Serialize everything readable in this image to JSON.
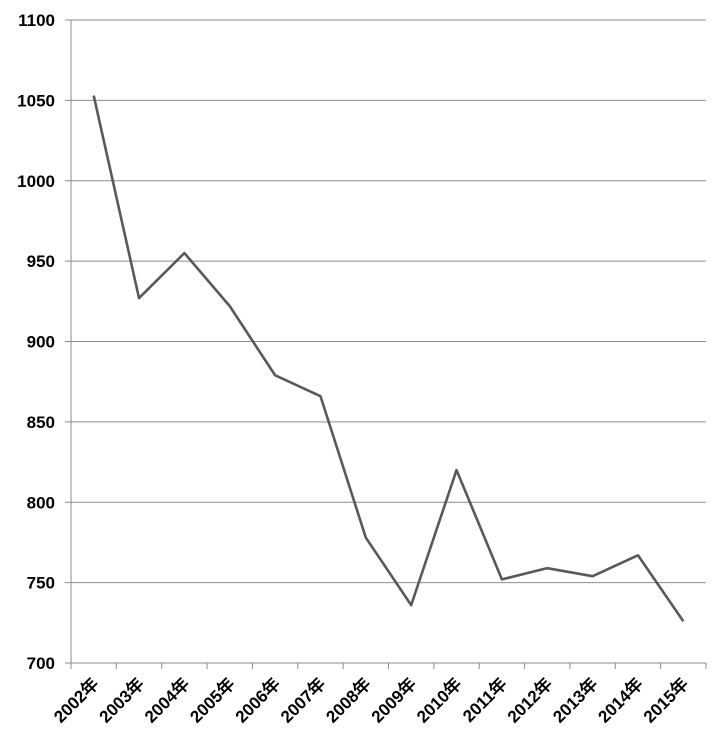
{
  "chart_data": {
    "type": "line",
    "categories": [
      "2002年",
      "2003年",
      "2004年",
      "2005年",
      "2006年",
      "2007年",
      "2008年",
      "2009年",
      "2010年",
      "2011年",
      "2012年",
      "2013年",
      "2014年",
      "2015年"
    ],
    "series": [
      {
        "values": [
          1053,
          927,
          955,
          922,
          879,
          866,
          778,
          736,
          820,
          752,
          759,
          754,
          767,
          726
        ]
      }
    ],
    "ylim": [
      700,
      1100
    ],
    "yticks": [
      700,
      750,
      800,
      850,
      900,
      950,
      1000,
      1050,
      1100
    ],
    "title": "",
    "xlabel": "",
    "ylabel": "",
    "grid": true,
    "legend": "none",
    "colors": {
      "line": "#595959",
      "grid": "#8c8c8c"
    }
  }
}
